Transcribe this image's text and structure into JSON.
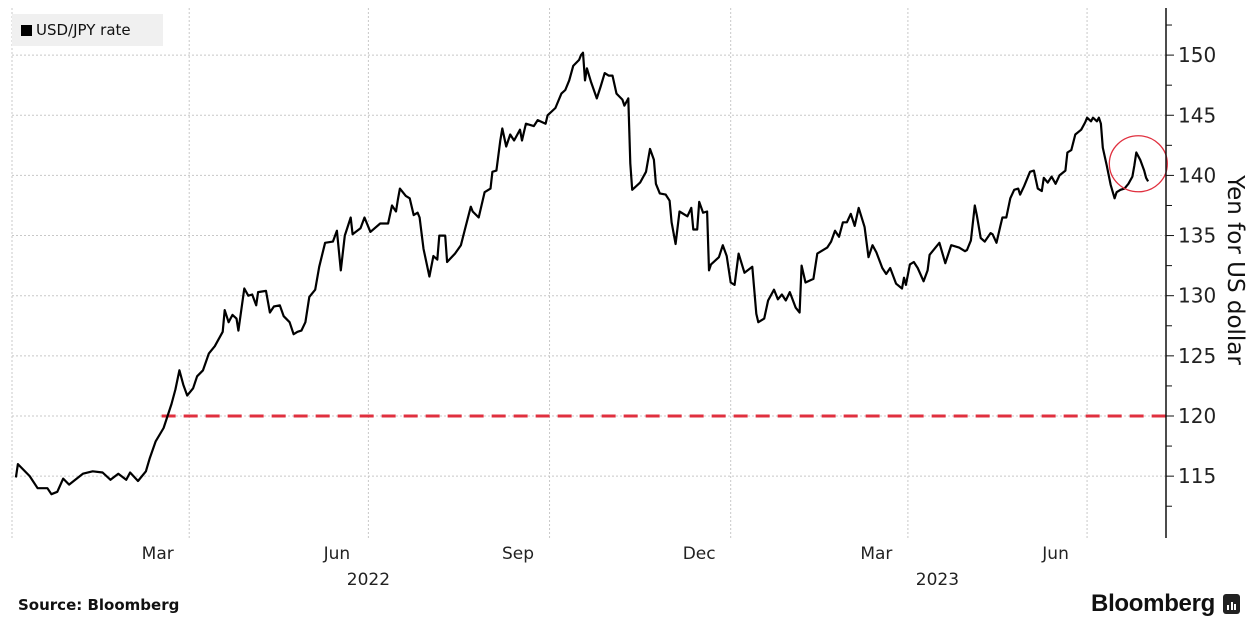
{
  "legend": {
    "label": "USD/JPY rate",
    "color": "#000000"
  },
  "footer": {
    "source": "Source: Bloomberg",
    "brand": "Bloomberg"
  },
  "chart_data": {
    "type": "line",
    "title": "",
    "xlabel": "",
    "ylabel": "Yen for US dollar",
    "y_axis_side": "right",
    "ylim": [
      110,
      154
    ],
    "yticks": [
      115,
      120,
      125,
      130,
      135,
      140,
      145,
      150
    ],
    "xlim": [
      "2022-01-01",
      "2023-08-10"
    ],
    "x_tick_labels": [
      {
        "label": "Mar",
        "date": "2022-03-16"
      },
      {
        "label": "Jun",
        "date": "2022-06-15"
      },
      {
        "label": "Sep",
        "date": "2022-09-15"
      },
      {
        "label": "Dec",
        "date": "2022-12-16"
      },
      {
        "label": "Mar",
        "date": "2023-03-16"
      },
      {
        "label": "Jun",
        "date": "2023-06-15"
      }
    ],
    "year_labels": [
      {
        "label": "2022",
        "date": "2022-07-01"
      },
      {
        "label": "2023",
        "date": "2023-04-16"
      }
    ],
    "grid": true,
    "grid_x_dates": [
      "2022-01-01",
      "2022-04-01",
      "2022-07-01",
      "2022-10-01",
      "2023-01-01",
      "2023-04-01",
      "2023-07-01"
    ],
    "legend_position": "top-left",
    "reference_line": {
      "value": 120,
      "from": "2022-03-18",
      "color": "#e0303f",
      "style": "dashed"
    },
    "highlight": {
      "date": "2023-07-25",
      "value": 140.8,
      "color": "#e0303f",
      "shape": "circle"
    },
    "series": [
      {
        "name": "USD/JPY rate",
        "color": "#000000",
        "points": [
          [
            "2022-01-03",
            114.9
          ],
          [
            "2022-01-04",
            116.0
          ],
          [
            "2022-01-10",
            115.0
          ],
          [
            "2022-01-14",
            114.0
          ],
          [
            "2022-01-19",
            114.0
          ],
          [
            "2022-01-21",
            113.5
          ],
          [
            "2022-01-24",
            113.7
          ],
          [
            "2022-01-27",
            114.8
          ],
          [
            "2022-01-30",
            114.3
          ],
          [
            "2022-02-06",
            115.2
          ],
          [
            "2022-02-11",
            115.4
          ],
          [
            "2022-02-16",
            115.3
          ],
          [
            "2022-02-20",
            114.7
          ],
          [
            "2022-02-24",
            115.2
          ],
          [
            "2022-02-28",
            114.7
          ],
          [
            "2022-03-02",
            115.3
          ],
          [
            "2022-03-06",
            114.6
          ],
          [
            "2022-03-10",
            115.4
          ],
          [
            "2022-03-12",
            116.5
          ],
          [
            "2022-03-15",
            117.9
          ],
          [
            "2022-03-19",
            119.0
          ],
          [
            "2022-03-23",
            121.0
          ],
          [
            "2022-03-25",
            122.2
          ],
          [
            "2022-03-27",
            123.8
          ],
          [
            "2022-03-29",
            122.6
          ],
          [
            "2022-03-31",
            121.7
          ],
          [
            "2022-04-03",
            122.3
          ],
          [
            "2022-04-05",
            123.3
          ],
          [
            "2022-04-08",
            123.8
          ],
          [
            "2022-04-11",
            125.2
          ],
          [
            "2022-04-14",
            125.8
          ],
          [
            "2022-04-18",
            127.0
          ],
          [
            "2022-04-19",
            128.8
          ],
          [
            "2022-04-21",
            127.8
          ],
          [
            "2022-04-23",
            128.4
          ],
          [
            "2022-04-25",
            128.1
          ],
          [
            "2022-04-26",
            127.1
          ],
          [
            "2022-04-29",
            130.6
          ],
          [
            "2022-05-01",
            130.0
          ],
          [
            "2022-05-03",
            130.1
          ],
          [
            "2022-05-05",
            129.2
          ],
          [
            "2022-05-06",
            130.3
          ],
          [
            "2022-05-10",
            130.4
          ],
          [
            "2022-05-12",
            128.6
          ],
          [
            "2022-05-14",
            129.1
          ],
          [
            "2022-05-17",
            129.2
          ],
          [
            "2022-05-19",
            128.3
          ],
          [
            "2022-05-22",
            127.8
          ],
          [
            "2022-05-24",
            126.8
          ],
          [
            "2022-05-26",
            127.0
          ],
          [
            "2022-05-28",
            127.1
          ],
          [
            "2022-05-30",
            127.8
          ],
          [
            "2022-06-01",
            129.9
          ],
          [
            "2022-06-04",
            130.5
          ],
          [
            "2022-06-06",
            132.4
          ],
          [
            "2022-06-09",
            134.4
          ],
          [
            "2022-06-13",
            134.5
          ],
          [
            "2022-06-15",
            135.4
          ],
          [
            "2022-06-17",
            132.1
          ],
          [
            "2022-06-19",
            135.0
          ],
          [
            "2022-06-22",
            136.5
          ],
          [
            "2022-06-23",
            135.1
          ],
          [
            "2022-06-27",
            135.6
          ],
          [
            "2022-06-29",
            136.5
          ],
          [
            "2022-07-02",
            135.3
          ],
          [
            "2022-07-07",
            136.0
          ],
          [
            "2022-07-11",
            136.0
          ],
          [
            "2022-07-13",
            137.5
          ],
          [
            "2022-07-15",
            137.0
          ],
          [
            "2022-07-16",
            138.0
          ],
          [
            "2022-07-17",
            138.9
          ],
          [
            "2022-07-20",
            138.3
          ],
          [
            "2022-07-22",
            138.1
          ],
          [
            "2022-07-24",
            136.7
          ],
          [
            "2022-07-26",
            136.9
          ],
          [
            "2022-07-27",
            136.5
          ],
          [
            "2022-07-29",
            133.9
          ],
          [
            "2022-08-01",
            131.6
          ],
          [
            "2022-08-03",
            133.3
          ],
          [
            "2022-08-05",
            133.0
          ],
          [
            "2022-08-06",
            135.0
          ],
          [
            "2022-08-09",
            135.0
          ],
          [
            "2022-08-10",
            132.8
          ],
          [
            "2022-08-14",
            133.5
          ],
          [
            "2022-08-17",
            134.2
          ],
          [
            "2022-08-19",
            135.5
          ],
          [
            "2022-08-22",
            137.4
          ],
          [
            "2022-08-23",
            137.0
          ],
          [
            "2022-08-26",
            136.5
          ],
          [
            "2022-08-29",
            138.6
          ],
          [
            "2022-09-01",
            138.9
          ],
          [
            "2022-09-02",
            140.3
          ],
          [
            "2022-09-04",
            140.4
          ],
          [
            "2022-09-06",
            142.9
          ],
          [
            "2022-09-07",
            143.9
          ],
          [
            "2022-09-09",
            142.4
          ],
          [
            "2022-09-11",
            143.4
          ],
          [
            "2022-09-13",
            142.9
          ],
          [
            "2022-09-16",
            143.8
          ],
          [
            "2022-09-17",
            142.9
          ],
          [
            "2022-09-19",
            144.3
          ],
          [
            "2022-09-23",
            144.1
          ],
          [
            "2022-09-25",
            144.6
          ],
          [
            "2022-09-29",
            144.3
          ],
          [
            "2022-09-30",
            145.0
          ],
          [
            "2022-10-04",
            145.6
          ],
          [
            "2022-10-07",
            146.8
          ],
          [
            "2022-10-09",
            147.1
          ],
          [
            "2022-10-11",
            147.9
          ],
          [
            "2022-10-13",
            149.1
          ],
          [
            "2022-10-16",
            149.6
          ],
          [
            "2022-10-17",
            150.0
          ],
          [
            "2022-10-18",
            150.2
          ],
          [
            "2022-10-19",
            147.9
          ],
          [
            "2022-10-20",
            148.9
          ],
          [
            "2022-10-22",
            147.8
          ],
          [
            "2022-10-25",
            146.4
          ],
          [
            "2022-10-27",
            147.4
          ],
          [
            "2022-10-29",
            148.5
          ],
          [
            "2022-10-31",
            148.3
          ],
          [
            "2022-11-02",
            148.3
          ],
          [
            "2022-11-04",
            146.8
          ],
          [
            "2022-11-07",
            146.3
          ],
          [
            "2022-11-08",
            145.8
          ],
          [
            "2022-11-10",
            146.4
          ],
          [
            "2022-11-11",
            141.0
          ],
          [
            "2022-11-12",
            138.8
          ],
          [
            "2022-11-14",
            139.1
          ],
          [
            "2022-11-16",
            139.4
          ],
          [
            "2022-11-19",
            140.3
          ],
          [
            "2022-11-21",
            142.2
          ],
          [
            "2022-11-23",
            141.3
          ],
          [
            "2022-11-24",
            139.3
          ],
          [
            "2022-11-26",
            138.5
          ],
          [
            "2022-11-29",
            138.4
          ],
          [
            "2022-12-01",
            137.9
          ],
          [
            "2022-12-02",
            136.1
          ],
          [
            "2022-12-04",
            134.3
          ],
          [
            "2022-12-06",
            137.0
          ],
          [
            "2022-12-10",
            136.6
          ],
          [
            "2022-12-12",
            137.3
          ],
          [
            "2022-12-13",
            135.5
          ],
          [
            "2022-12-15",
            135.5
          ],
          [
            "2022-12-16",
            137.8
          ],
          [
            "2022-12-18",
            136.9
          ],
          [
            "2022-12-20",
            137.0
          ],
          [
            "2022-12-21",
            132.1
          ],
          [
            "2022-12-22",
            132.6
          ],
          [
            "2022-12-26",
            133.2
          ],
          [
            "2022-12-28",
            134.2
          ],
          [
            "2022-12-30",
            133.3
          ],
          [
            "2023-01-01",
            131.1
          ],
          [
            "2023-01-03",
            130.9
          ],
          [
            "2023-01-05",
            133.5
          ],
          [
            "2023-01-08",
            131.9
          ],
          [
            "2023-01-12",
            132.4
          ],
          [
            "2023-01-14",
            128.5
          ],
          [
            "2023-01-15",
            127.8
          ],
          [
            "2023-01-18",
            128.1
          ],
          [
            "2023-01-20",
            129.6
          ],
          [
            "2023-01-23",
            130.5
          ],
          [
            "2023-01-25",
            129.7
          ],
          [
            "2023-01-27",
            130.1
          ],
          [
            "2023-01-29",
            129.6
          ],
          [
            "2023-01-31",
            130.3
          ],
          [
            "2023-02-03",
            129.0
          ],
          [
            "2023-02-05",
            128.6
          ],
          [
            "2023-02-06",
            132.5
          ],
          [
            "2023-02-08",
            131.1
          ],
          [
            "2023-02-12",
            131.4
          ],
          [
            "2023-02-14",
            133.5
          ],
          [
            "2023-02-19",
            134.0
          ],
          [
            "2023-02-21",
            134.5
          ],
          [
            "2023-02-23",
            135.4
          ],
          [
            "2023-02-25",
            134.9
          ],
          [
            "2023-02-27",
            136.1
          ],
          [
            "2023-03-01",
            136.1
          ],
          [
            "2023-03-03",
            136.8
          ],
          [
            "2023-03-05",
            135.8
          ],
          [
            "2023-03-07",
            137.3
          ],
          [
            "2023-03-10",
            135.7
          ],
          [
            "2023-03-12",
            133.2
          ],
          [
            "2023-03-14",
            134.2
          ],
          [
            "2023-03-16",
            133.6
          ],
          [
            "2023-03-19",
            132.3
          ],
          [
            "2023-03-21",
            131.8
          ],
          [
            "2023-03-23",
            132.3
          ],
          [
            "2023-03-26",
            131.0
          ],
          [
            "2023-03-29",
            130.6
          ],
          [
            "2023-03-30",
            131.5
          ],
          [
            "2023-03-31",
            130.9
          ],
          [
            "2023-04-02",
            132.6
          ],
          [
            "2023-04-04",
            132.8
          ],
          [
            "2023-04-06",
            132.3
          ],
          [
            "2023-04-09",
            131.2
          ],
          [
            "2023-04-11",
            132.1
          ],
          [
            "2023-04-12",
            133.4
          ],
          [
            "2023-04-15",
            134.0
          ],
          [
            "2023-04-17",
            134.4
          ],
          [
            "2023-04-20",
            132.7
          ],
          [
            "2023-04-23",
            134.2
          ],
          [
            "2023-04-27",
            134.0
          ],
          [
            "2023-04-30",
            133.7
          ],
          [
            "2023-05-01",
            133.8
          ],
          [
            "2023-05-03",
            134.6
          ],
          [
            "2023-05-05",
            137.5
          ],
          [
            "2023-05-06",
            136.7
          ],
          [
            "2023-05-08",
            134.8
          ],
          [
            "2023-05-10",
            134.5
          ],
          [
            "2023-05-13",
            135.2
          ],
          [
            "2023-05-14",
            135.1
          ],
          [
            "2023-05-16",
            134.4
          ],
          [
            "2023-05-18",
            135.8
          ],
          [
            "2023-05-19",
            136.5
          ],
          [
            "2023-05-21",
            136.5
          ],
          [
            "2023-05-23",
            138.1
          ],
          [
            "2023-05-25",
            138.8
          ],
          [
            "2023-05-27",
            138.9
          ],
          [
            "2023-05-28",
            138.4
          ],
          [
            "2023-05-30",
            139.1
          ],
          [
            "2023-06-02",
            140.3
          ],
          [
            "2023-06-04",
            140.4
          ],
          [
            "2023-06-06",
            138.9
          ],
          [
            "2023-06-08",
            138.7
          ],
          [
            "2023-06-09",
            139.8
          ],
          [
            "2023-06-11",
            139.4
          ],
          [
            "2023-06-13",
            139.9
          ],
          [
            "2023-06-15",
            139.3
          ],
          [
            "2023-06-17",
            140.0
          ],
          [
            "2023-06-20",
            140.4
          ],
          [
            "2023-06-21",
            141.9
          ],
          [
            "2023-06-23",
            142.1
          ],
          [
            "2023-06-25",
            143.4
          ],
          [
            "2023-06-28",
            143.8
          ],
          [
            "2023-06-30",
            144.4
          ],
          [
            "2023-07-01",
            144.8
          ],
          [
            "2023-07-03",
            144.5
          ],
          [
            "2023-07-04",
            144.8
          ],
          [
            "2023-07-06",
            144.5
          ],
          [
            "2023-07-07",
            144.8
          ],
          [
            "2023-07-08",
            144.3
          ],
          [
            "2023-07-09",
            142.3
          ],
          [
            "2023-07-11",
            140.8
          ],
          [
            "2023-07-13",
            139.2
          ],
          [
            "2023-07-15",
            138.1
          ],
          [
            "2023-07-16",
            138.6
          ],
          [
            "2023-07-18",
            138.8
          ],
          [
            "2023-07-20",
            138.9
          ],
          [
            "2023-07-22",
            139.3
          ],
          [
            "2023-07-24",
            139.9
          ],
          [
            "2023-07-25",
            140.8
          ],
          [
            "2023-07-26",
            141.9
          ],
          [
            "2023-07-28",
            141.3
          ],
          [
            "2023-07-30",
            140.4
          ],
          [
            "2023-07-31",
            139.8
          ],
          [
            "2023-08-01",
            139.5
          ]
        ]
      }
    ]
  }
}
